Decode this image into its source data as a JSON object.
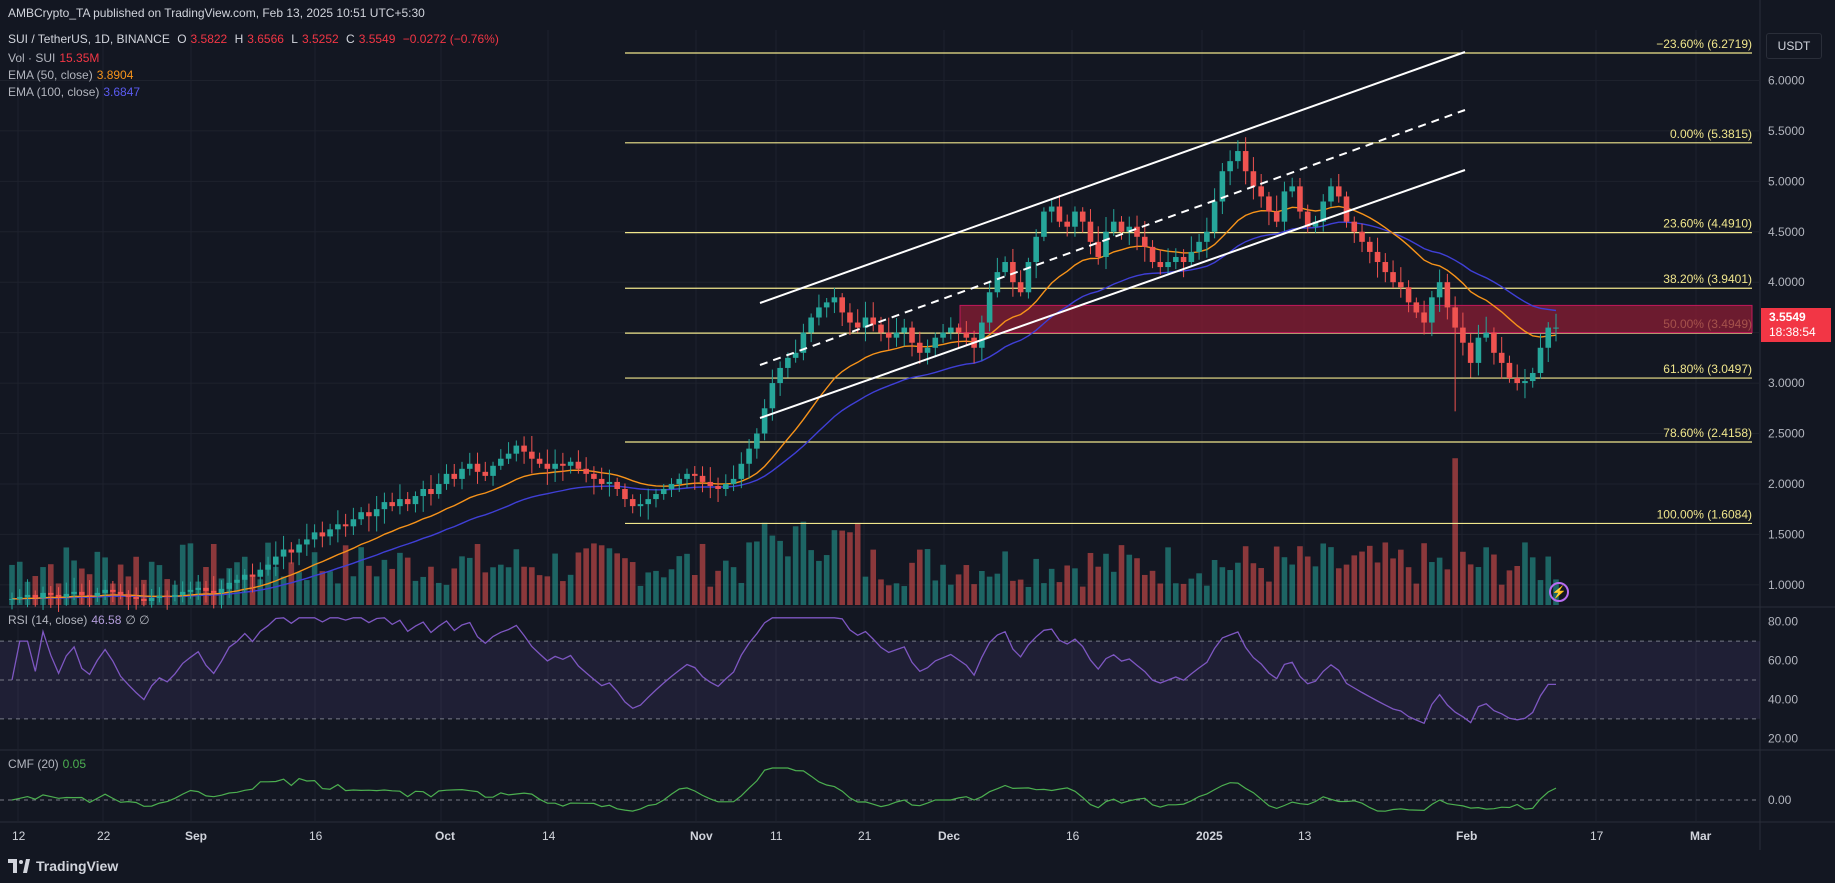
{
  "header": {
    "published": "AMBCrypto_TA published on TradingView.com, Feb 13, 2025 10:51 UTC+5:30",
    "symbol": "SUI / TetherUS, 1D, BINANCE",
    "ohlc": {
      "o_label": "O",
      "o": "3.5822",
      "h_label": "H",
      "h": "3.6566",
      "l_label": "L",
      "l": "3.5252",
      "c_label": "C",
      "c": "3.5549",
      "change": "−0.0272 (−0.76%)"
    },
    "volume": {
      "label": "Vol · SUI",
      "value": "15.35M"
    },
    "ema50": {
      "label": "EMA (50, close)",
      "value": "3.8904",
      "color": "#f7931a"
    },
    "ema100": {
      "label": "EMA (100, close)",
      "value": "3.6847",
      "color": "#3f3fd6"
    }
  },
  "currency_button": "USDT",
  "last_price": {
    "value": "3.5549",
    "countdown": "18:38:54",
    "color": "#f23645"
  },
  "rsi": {
    "label": "RSI (14, close)",
    "value": "46.58",
    "extra": "∅ ∅"
  },
  "cmf": {
    "label": "CMF (20)",
    "value": "0.05"
  },
  "brand": "TradingView",
  "colors": {
    "up": "#26a69a",
    "down": "#ef5350",
    "fib": "#f0e68c",
    "zone": "#8b1e34",
    "rsi": "#7e57c2",
    "cmf": "#4caf50",
    "bg": "#131722",
    "grid": "#1e222d"
  },
  "chart_data": {
    "type": "candlestick",
    "price_axis_ticks": [
      "6.0000",
      "5.5000",
      "5.0000",
      "4.5000",
      "4.0000",
      "3.5000",
      "3.0000",
      "2.5000",
      "2.0000",
      "1.5000",
      "1.0000"
    ],
    "ylim": [
      0.8,
      6.5
    ],
    "x_tick_labels": [
      "12",
      "22",
      "Sep",
      "16",
      "Oct",
      "14",
      "Nov",
      "11",
      "21",
      "Dec",
      "16",
      "2025",
      "13",
      "Feb",
      "17",
      "Mar"
    ],
    "fib_levels": [
      {
        "label": "−23.60% (6.2719)",
        "value": 6.2719
      },
      {
        "label": "0.00% (5.3815)",
        "value": 5.3815
      },
      {
        "label": "23.60% (4.4910)",
        "value": 4.491
      },
      {
        "label": "38.20% (3.9401)",
        "value": 3.9401
      },
      {
        "label": "50.00% (3.4949)",
        "value": 3.4949
      },
      {
        "label": "61.80% (3.0497)",
        "value": 3.0497
      },
      {
        "label": "78.60% (2.4158)",
        "value": 2.4158
      },
      {
        "label": "100.00% (1.6084)",
        "value": 1.6084
      }
    ],
    "resistance_zone": [
      3.5,
      3.77
    ],
    "closes": [
      0.86,
      0.88,
      0.9,
      0.87,
      0.92,
      0.9,
      0.88,
      0.91,
      0.93,
      0.9,
      0.89,
      0.92,
      0.95,
      0.93,
      0.9,
      0.88,
      0.86,
      0.84,
      0.87,
      0.89,
      0.88,
      0.9,
      0.93,
      0.95,
      0.97,
      0.94,
      0.92,
      0.96,
      1.02,
      1.05,
      1.1,
      1.08,
      1.15,
      1.2,
      1.28,
      1.35,
      1.32,
      1.4,
      1.45,
      1.52,
      1.48,
      1.55,
      1.6,
      1.58,
      1.65,
      1.72,
      1.68,
      1.75,
      1.82,
      1.78,
      1.85,
      1.8,
      1.88,
      1.95,
      1.9,
      2.0,
      2.1,
      2.05,
      2.15,
      2.2,
      2.12,
      2.08,
      2.18,
      2.25,
      2.3,
      2.38,
      2.32,
      2.25,
      2.2,
      2.15,
      2.2,
      2.18,
      2.22,
      2.15,
      2.1,
      2.05,
      2.0,
      2.02,
      1.95,
      1.85,
      1.78,
      1.8,
      1.85,
      1.9,
      1.95,
      2.0,
      2.05,
      2.1,
      2.08,
      2.02,
      1.98,
      1.95,
      2.0,
      2.05,
      2.2,
      2.35,
      2.5,
      2.75,
      3.0,
      3.15,
      3.25,
      3.3,
      3.5,
      3.65,
      3.75,
      3.8,
      3.85,
      3.7,
      3.6,
      3.55,
      3.65,
      3.58,
      3.5,
      3.45,
      3.5,
      3.55,
      3.4,
      3.3,
      3.35,
      3.45,
      3.5,
      3.55,
      3.5,
      3.45,
      3.35,
      3.6,
      3.9,
      4.1,
      4.2,
      4.0,
      3.9,
      4.2,
      4.45,
      4.7,
      4.75,
      4.6,
      4.55,
      4.7,
      4.6,
      4.4,
      4.25,
      4.5,
      4.6,
      4.5,
      4.55,
      4.45,
      4.35,
      4.2,
      4.15,
      4.2,
      4.25,
      4.2,
      4.3,
      4.4,
      4.5,
      4.8,
      5.1,
      5.2,
      5.3,
      5.1,
      4.95,
      4.85,
      4.7,
      4.6,
      4.9,
      4.95,
      4.7,
      4.55,
      4.6,
      4.8,
      4.95,
      4.85,
      4.6,
      4.5,
      4.4,
      4.3,
      4.2,
      4.1,
      4.0,
      3.95,
      3.8,
      3.7,
      3.6,
      3.85,
      4.0,
      3.75,
      3.55,
      3.4,
      3.2,
      3.45,
      3.5,
      3.3,
      3.2,
      3.05,
      3.0,
      3.02,
      3.1,
      3.35,
      3.55,
      3.55
    ]
  }
}
